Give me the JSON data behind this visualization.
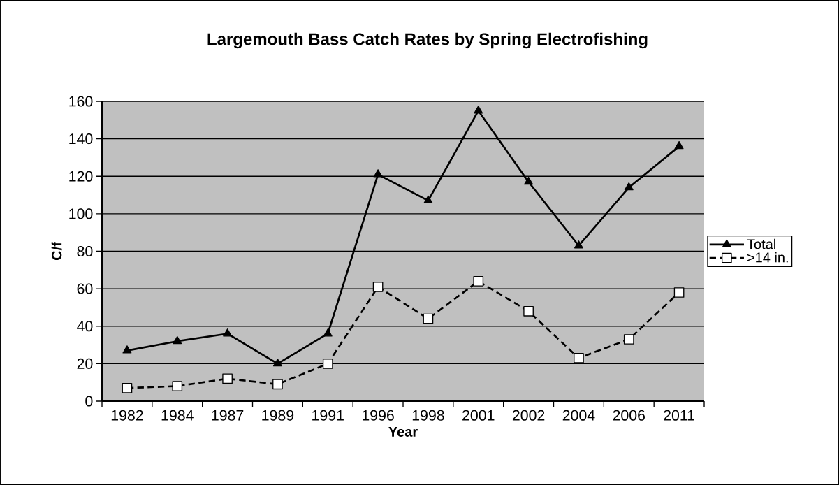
{
  "chart_data": {
    "type": "line",
    "title": "Largemouth Bass Catch Rates by Spring Electrofishing",
    "xlabel": "Year",
    "ylabel": "C/f",
    "categories": [
      "1982",
      "1984",
      "1987",
      "1989",
      "1991",
      "1996",
      "1998",
      "2001",
      "2002",
      "2004",
      "2006",
      "2011"
    ],
    "series": [
      {
        "name": "Total",
        "color": "#000000",
        "marker": "triangle",
        "line_style": "solid",
        "values": [
          27,
          32,
          36,
          20,
          36,
          121,
          107,
          155,
          117,
          83,
          114,
          136
        ]
      },
      {
        "name": ">14 in.",
        "color": "#000000",
        "marker": "square",
        "line_style": "dashed",
        "values": [
          7,
          8,
          12,
          9,
          20,
          61,
          44,
          64,
          48,
          23,
          33,
          58
        ]
      }
    ],
    "ylim": [
      0,
      160
    ],
    "yticks": [
      0,
      20,
      40,
      60,
      80,
      100,
      120,
      140,
      160
    ],
    "grid": "y",
    "legend": "right"
  }
}
